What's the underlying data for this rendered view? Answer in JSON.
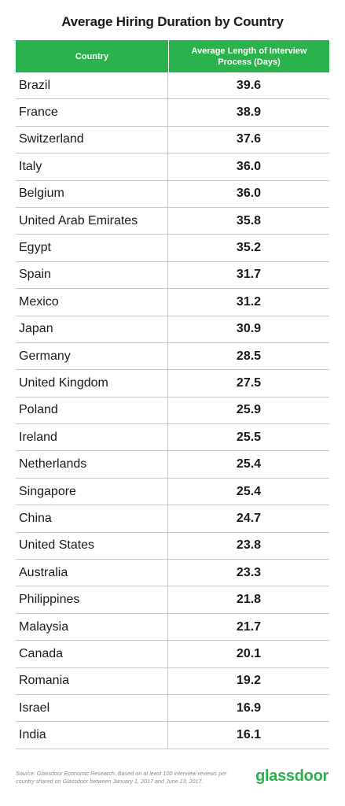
{
  "chart_data": {
    "type": "table",
    "title": "Average Hiring Duration by Country",
    "columns": [
      "Country",
      "Average Length of Interview Process (Days)"
    ],
    "rows": [
      {
        "country": "Brazil",
        "value": "39.6"
      },
      {
        "country": "France",
        "value": "38.9"
      },
      {
        "country": "Switzerland",
        "value": "37.6"
      },
      {
        "country": "Italy",
        "value": "36.0"
      },
      {
        "country": "Belgium",
        "value": "36.0"
      },
      {
        "country": "United Arab Emirates",
        "value": "35.8"
      },
      {
        "country": "Egypt",
        "value": "35.2"
      },
      {
        "country": "Spain",
        "value": "31.7"
      },
      {
        "country": "Mexico",
        "value": "31.2"
      },
      {
        "country": "Japan",
        "value": "30.9"
      },
      {
        "country": "Germany",
        "value": "28.5"
      },
      {
        "country": "United Kingdom",
        "value": "27.5"
      },
      {
        "country": "Poland",
        "value": "25.9"
      },
      {
        "country": "Ireland",
        "value": "25.5"
      },
      {
        "country": "Netherlands",
        "value": "25.4"
      },
      {
        "country": "Singapore",
        "value": "25.4"
      },
      {
        "country": "China",
        "value": "24.7"
      },
      {
        "country": "United States",
        "value": "23.8"
      },
      {
        "country": "Australia",
        "value": "23.3"
      },
      {
        "country": "Philippines",
        "value": "21.8"
      },
      {
        "country": "Malaysia",
        "value": "21.7"
      },
      {
        "country": "Canada",
        "value": "20.1"
      },
      {
        "country": "Romania",
        "value": "19.2"
      },
      {
        "country": "Israel",
        "value": "16.9"
      },
      {
        "country": "India",
        "value": "16.1"
      }
    ]
  },
  "footnote": "Source: Glassdoor Economic Research. Based on at least 100 interview reviews per country shared on Glassdoor between January 1, 2017 and June 13, 2017.",
  "brand": "glassdoor",
  "colors": {
    "accent": "#2ab24c",
    "header_text": "#ffffff",
    "grid": "#c9c9c9"
  }
}
